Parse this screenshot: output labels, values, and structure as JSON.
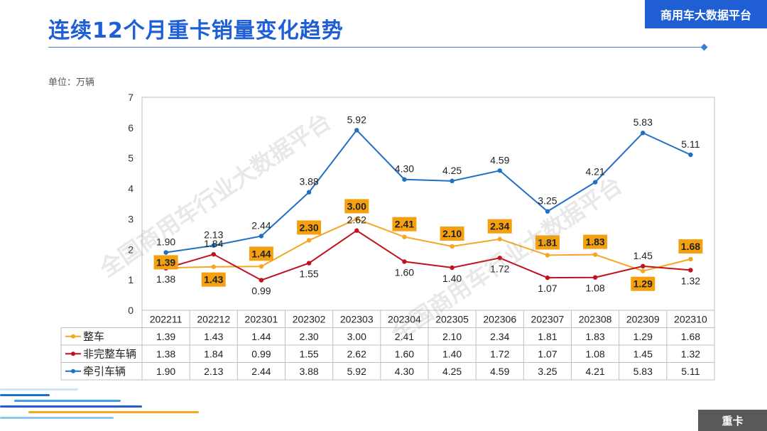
{
  "header": {
    "title": "连续12个月重卡销量变化趋势",
    "brand": "商用车大数据平台"
  },
  "unit_label": "单位：万辆",
  "watermark": "全国商用车行业大数据平台",
  "footer": {
    "badge": "重卡"
  },
  "colors": {
    "title": "#1e5fd8",
    "brand_bg": "#1f5fd3",
    "zhengche": "#f5a623",
    "feiwanzheng": "#c0121c",
    "qianyin": "#1f6fc5",
    "label_box": "#f5a00f"
  },
  "chart_data": {
    "type": "line",
    "categories": [
      "202211",
      "202212",
      "202301",
      "202302",
      "202303",
      "202304",
      "202305",
      "202306",
      "202307",
      "202308",
      "202309",
      "202310"
    ],
    "ylim": [
      0,
      7
    ],
    "yticks": [
      "0",
      "1",
      "2",
      "3",
      "4",
      "5",
      "6",
      "7"
    ],
    "grid": false,
    "legend": "table-left",
    "series": [
      {
        "name": "整车",
        "color": "#f5a623",
        "values": [
          1.39,
          1.43,
          1.44,
          2.3,
          3.0,
          2.41,
          2.1,
          2.34,
          1.81,
          1.83,
          1.29,
          1.68
        ],
        "labels": [
          "1.39",
          "1.43",
          "1.44",
          "2.30",
          "3.00",
          "2.41",
          "2.10",
          "2.34",
          "1.81",
          "1.83",
          "1.29",
          "1.68"
        ]
      },
      {
        "name": "非完整车辆",
        "color": "#c0121c",
        "values": [
          1.38,
          1.84,
          0.99,
          1.55,
          2.62,
          1.6,
          1.4,
          1.72,
          1.07,
          1.08,
          1.45,
          1.32
        ],
        "labels": [
          "1.38",
          "1.84",
          "0.99",
          "1.55",
          "2.62",
          "1.60",
          "1.40",
          "1.72",
          "1.07",
          "1.08",
          "1.45",
          "1.32"
        ]
      },
      {
        "name": "牵引车辆",
        "color": "#1f6fc5",
        "values": [
          1.9,
          2.13,
          2.44,
          3.88,
          5.92,
          4.3,
          4.25,
          4.59,
          3.25,
          4.21,
          5.83,
          5.11
        ],
        "labels": [
          "1.90",
          "2.13",
          "2.44",
          "3.88",
          "5.92",
          "4.30",
          "4.25",
          "4.59",
          "3.25",
          "4.21",
          "5.83",
          "5.11"
        ]
      }
    ]
  }
}
